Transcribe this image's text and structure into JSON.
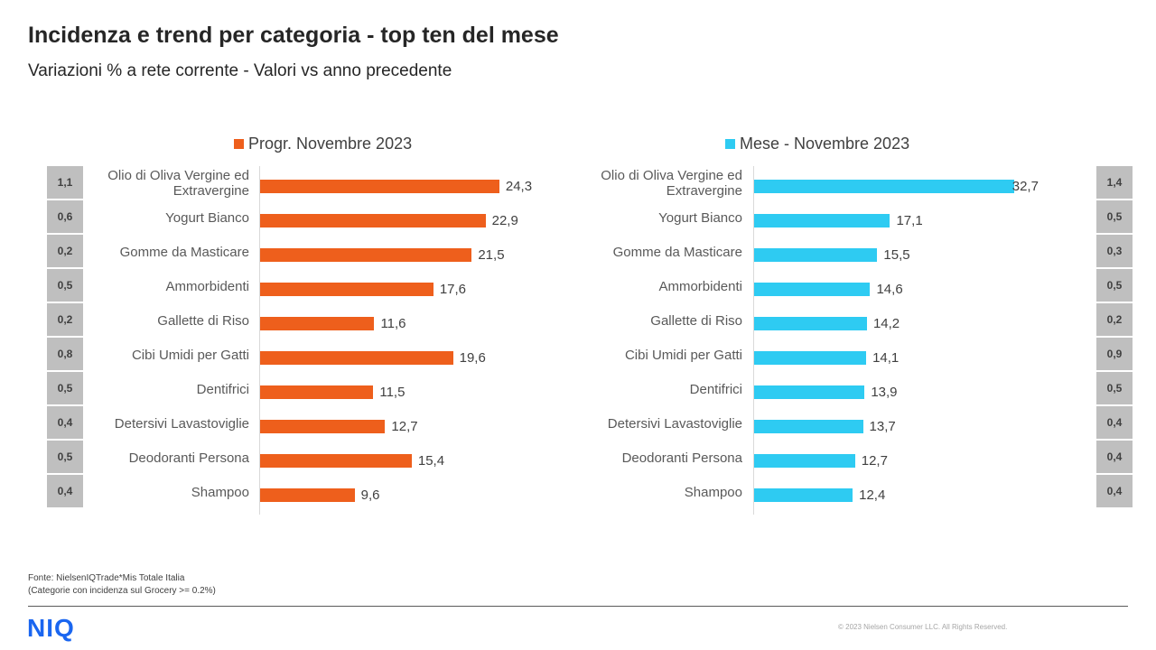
{
  "header": {
    "title": "Incidenza e trend per categoria - top ten del mese",
    "subtitle": "Variazioni  % a rete corrente - Valori vs anno precedente"
  },
  "chart_data": [
    {
      "type": "bar",
      "orientation": "horizontal",
      "legend": "Progr. Novembre 2023",
      "color": "#ee5f1c",
      "categories": [
        "Olio di Oliva Vergine ed Extravergine",
        "Yogurt Bianco",
        "Gomme da Masticare",
        "Ammorbidenti",
        "Gallette di Riso",
        "Cibi Umidi per Gatti",
        "Dentifrici",
        "Detersivi Lavastoviglie",
        "Deodoranti Persona",
        "Shampoo"
      ],
      "values": [
        24.3,
        22.9,
        21.5,
        17.6,
        11.6,
        19.6,
        11.5,
        12.7,
        15.4,
        9.6
      ],
      "value_labels": [
        "24,3",
        "22,9",
        "21,5",
        "17,6",
        "11,6",
        "19,6",
        "11,5",
        "12,7",
        "15,4",
        "9,6"
      ],
      "incidence_labels": [
        "1,1",
        "0,6",
        "0,2",
        "0,5",
        "0,2",
        "0,8",
        "0,5",
        "0,4",
        "0,5",
        "0,4"
      ],
      "xlim": [
        0,
        30
      ]
    },
    {
      "type": "bar",
      "orientation": "horizontal",
      "legend": "Mese - Novembre 2023",
      "color": "#2ecbf2",
      "categories": [
        "Olio di Oliva Vergine ed Extravergine",
        "Yogurt Bianco",
        "Gomme da Masticare",
        "Ammorbidenti",
        "Gallette di Riso",
        "Cibi Umidi per Gatti",
        "Dentifrici",
        "Detersivi Lavastoviglie",
        "Deodoranti Persona",
        "Shampoo"
      ],
      "values": [
        32.7,
        17.1,
        15.5,
        14.6,
        14.2,
        14.1,
        13.9,
        13.7,
        12.7,
        12.4
      ],
      "value_labels": [
        "32,7",
        "17,1",
        "15,5",
        "14,6",
        "14,2",
        "14,1",
        "13,9",
        "13,7",
        "12,7",
        "12,4"
      ],
      "incidence_labels": [
        "1,4",
        "0,5",
        "0,3",
        "0,5",
        "0,2",
        "0,9",
        "0,5",
        "0,4",
        "0,4",
        "0,4"
      ],
      "xlim": [
        0,
        36
      ]
    }
  ],
  "footer": {
    "source_line1": "Fonte: NielsenIQTrade*Mis Totale Italia",
    "source_line2": "(Categorie con incidenza sul Grocery >= 0.2%)",
    "logo": "NIQ",
    "copyright": "© 2023  Nielsen Consumer LLC. All Rights Reserved."
  },
  "colors": {
    "orange": "#ee5f1c",
    "cyan": "#2ecbf2",
    "badge": "#bfbfbf",
    "logo": "#1a66f0"
  }
}
